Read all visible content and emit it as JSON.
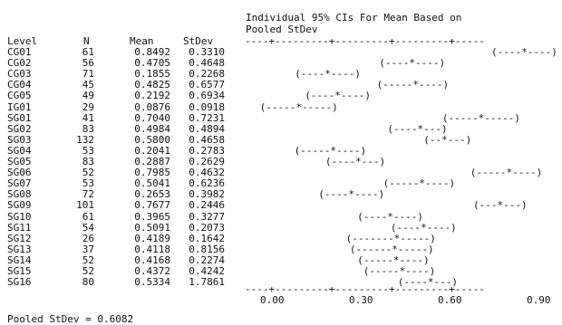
{
  "header": {
    "title_line1": "Individual 95% CIs For Mean Based on",
    "title_line2": "Pooled StDev"
  },
  "columns": {
    "level": "Level",
    "n": "N",
    "mean": "Mean",
    "stdev": "StDev"
  },
  "axis_rule_top": "----+---------+---------+---------+-----",
  "axis_rule_bottom": "----+---------+---------+---------+-----",
  "axis_ticks": [
    "0.00",
    "0.30",
    "0.60",
    "0.90"
  ],
  "rows": [
    {
      "level": "CG01",
      "n": "61",
      "mean": "0.8492",
      "stdev": "0.3310",
      "ci": "(----*----)"
    },
    {
      "level": "CG02",
      "n": "56",
      "mean": "0.4705",
      "stdev": "0.4648",
      "ci": "(----*----)"
    },
    {
      "level": "CG03",
      "n": "71",
      "mean": "0.1855",
      "stdev": "0.2268",
      "ci": "(----*----)"
    },
    {
      "level": "CG04",
      "n": "45",
      "mean": "0.4825",
      "stdev": "0.6577",
      "ci": "(-----*----)"
    },
    {
      "level": "CG05",
      "n": "49",
      "mean": "0.2192",
      "stdev": "0.6934",
      "ci": "(----*----)"
    },
    {
      "level": "IG01",
      "n": "29",
      "mean": "0.0876",
      "stdev": "0.0918",
      "ci": "(-----*-----)"
    },
    {
      "level": "SG01",
      "n": "41",
      "mean": "0.7040",
      "stdev": "0.7231",
      "ci": "(-----*-----)"
    },
    {
      "level": "SG02",
      "n": "83",
      "mean": "0.4984",
      "stdev": "0.4894",
      "ci": "(----*---)"
    },
    {
      "level": "SG03",
      "n": "132",
      "mean": "0.5800",
      "stdev": "0.4658",
      "ci": "(--*---)"
    },
    {
      "level": "SG04",
      "n": "53",
      "mean": "0.2041",
      "stdev": "0.2783",
      "ci": "(-----*----)"
    },
    {
      "level": "SG05",
      "n": "83",
      "mean": "0.2887",
      "stdev": "0.2629",
      "ci": "(----*---)"
    },
    {
      "level": "SG06",
      "n": "52",
      "mean": "0.7985",
      "stdev": "0.4632",
      "ci": "(-----*----)"
    },
    {
      "level": "SG07",
      "n": "53",
      "mean": "0.5041",
      "stdev": "0.6236",
      "ci": "(-----*----)"
    },
    {
      "level": "SG08",
      "n": "72",
      "mean": "0.2653",
      "stdev": "0.3982",
      "ci": "(----*----)"
    },
    {
      "level": "SG09",
      "n": "101",
      "mean": "0.7677",
      "stdev": "0.2446",
      "ci": "(---*---)"
    },
    {
      "level": "SG10",
      "n": "61",
      "mean": "0.3965",
      "stdev": "0.3277",
      "ci": "(----*----)"
    },
    {
      "level": "SG11",
      "n": "54",
      "mean": "0.5091",
      "stdev": "0.2073",
      "ci": "(----*----)"
    },
    {
      "level": "SG12",
      "n": "26",
      "mean": "0.4189",
      "stdev": "0.1642",
      "ci": "(-------*-----)"
    },
    {
      "level": "SG13",
      "n": "37",
      "mean": "0.4118",
      "stdev": "0.8156",
      "ci": "(------*-----)"
    },
    {
      "level": "SG14",
      "n": "52",
      "mean": "0.4168",
      "stdev": "0.2274",
      "ci": "(-----*----)"
    },
    {
      "level": "SG15",
      "n": "52",
      "mean": "0.4372",
      "stdev": "0.4242",
      "ci": "(-----*----)"
    },
    {
      "level": "SG16",
      "n": "80",
      "mean": "0.5334",
      "stdev": "1.7861",
      "ci": "(----*---)"
    }
  ],
  "footer": {
    "pooled": "Pooled StDev = 0.6082"
  }
}
